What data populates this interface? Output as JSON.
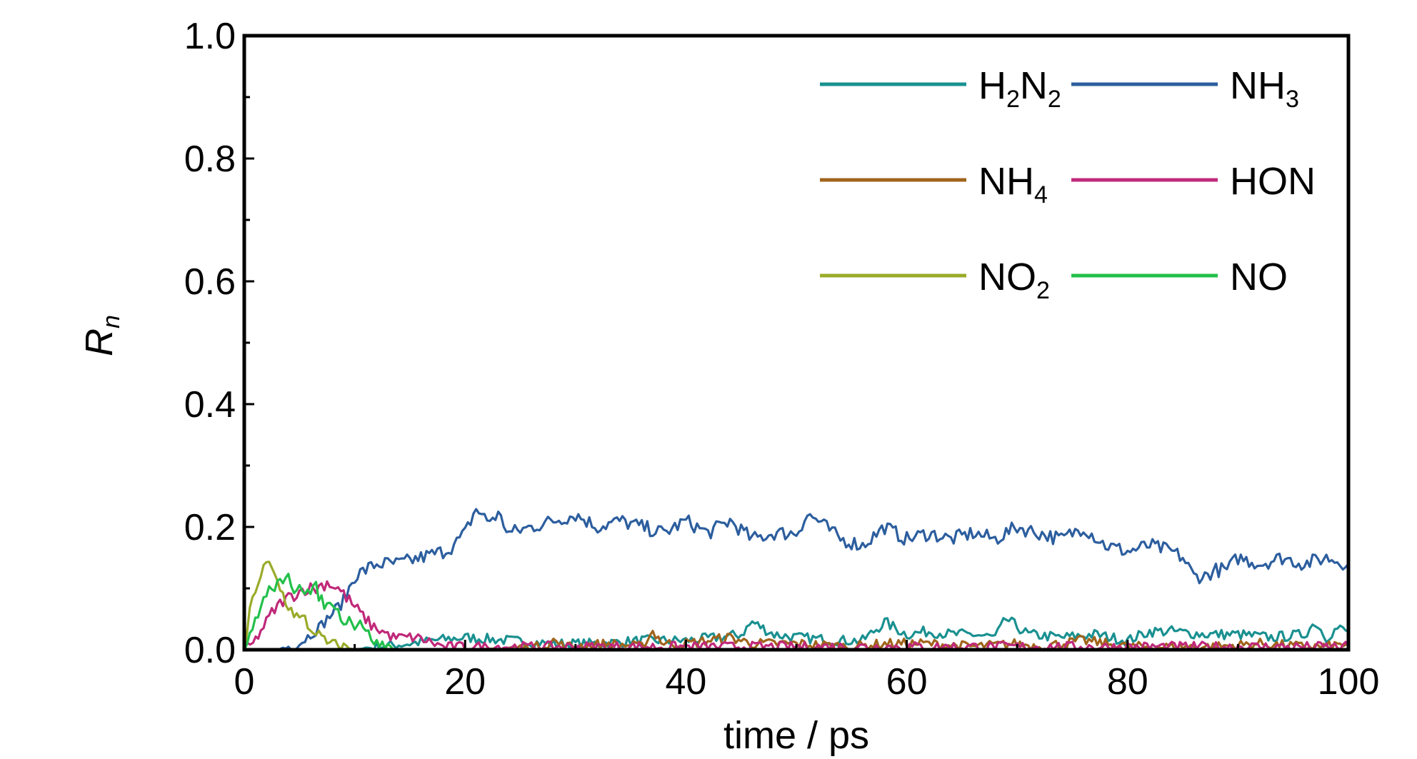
{
  "chart_data": {
    "type": "line",
    "title": "",
    "xlabel": "time / ps",
    "ylabel": {
      "main": "R",
      "sub": "n"
    },
    "xlim": [
      0,
      100
    ],
    "ylim": [
      0,
      1.0
    ],
    "xticks": [
      0,
      20,
      40,
      60,
      80,
      100
    ],
    "xtick_labels": [
      "0",
      "20",
      "40",
      "60",
      "80",
      "100"
    ],
    "yticks": [
      0.0,
      0.2,
      0.4,
      0.6,
      0.8,
      1.0
    ],
    "ytick_labels": [
      "0.0",
      "0.2",
      "0.4",
      "0.6",
      "0.8",
      "1.0"
    ],
    "grid": false,
    "legend_position": "top-right",
    "series": [
      {
        "name": "H2N2",
        "legend": {
          "parts": [
            "H",
            "2",
            "N",
            "2"
          ]
        },
        "color": "#1a9090",
        "x": [
          0,
          10,
          12,
          15,
          17,
          20,
          24,
          28,
          32,
          36,
          40,
          43,
          45,
          46,
          48,
          50,
          54,
          56,
          58,
          60,
          62,
          64,
          66,
          68,
          69,
          71,
          74,
          77,
          80,
          82,
          84,
          87,
          90,
          93,
          96,
          97,
          98,
          99,
          100
        ],
        "y": [
          0.0,
          0.0,
          0.005,
          0.01,
          0.015,
          0.02,
          0.015,
          0.01,
          0.01,
          0.015,
          0.015,
          0.02,
          0.025,
          0.045,
          0.025,
          0.02,
          0.015,
          0.015,
          0.045,
          0.025,
          0.03,
          0.025,
          0.025,
          0.02,
          0.05,
          0.025,
          0.02,
          0.025,
          0.015,
          0.03,
          0.03,
          0.025,
          0.025,
          0.02,
          0.025,
          0.045,
          0.02,
          0.035,
          0.03
        ]
      },
      {
        "name": "NH3",
        "legend": {
          "parts": [
            "NH",
            "3"
          ]
        },
        "color": "#2c5e9e",
        "x": [
          0,
          3,
          5,
          7,
          9,
          10,
          11,
          12,
          14,
          16,
          18,
          19,
          20,
          21,
          22,
          23,
          24,
          26,
          28,
          30,
          32,
          34,
          36,
          38,
          40,
          42,
          44,
          46,
          48,
          50,
          51,
          52,
          54,
          56,
          58,
          60,
          62,
          64,
          66,
          68,
          70,
          72,
          74,
          76,
          78,
          80,
          82,
          84,
          85,
          86,
          87,
          88,
          89,
          90,
          92,
          94,
          96,
          98,
          100
        ],
        "y": [
          0.0,
          0.0,
          0.01,
          0.04,
          0.08,
          0.12,
          0.13,
          0.14,
          0.14,
          0.15,
          0.16,
          0.17,
          0.19,
          0.23,
          0.21,
          0.22,
          0.19,
          0.2,
          0.21,
          0.22,
          0.2,
          0.21,
          0.2,
          0.19,
          0.21,
          0.19,
          0.21,
          0.18,
          0.19,
          0.19,
          0.22,
          0.21,
          0.18,
          0.17,
          0.2,
          0.18,
          0.19,
          0.18,
          0.19,
          0.18,
          0.2,
          0.19,
          0.18,
          0.2,
          0.17,
          0.16,
          0.17,
          0.16,
          0.15,
          0.12,
          0.12,
          0.13,
          0.13,
          0.15,
          0.14,
          0.15,
          0.14,
          0.15,
          0.14
        ]
      },
      {
        "name": "NH4",
        "legend": {
          "parts": [
            "NH",
            "4"
          ]
        },
        "color": "#a0641c",
        "x": [
          0,
          20,
          27,
          28,
          29,
          33,
          36,
          37,
          38,
          40,
          42,
          44,
          46,
          50,
          55,
          58,
          62,
          66,
          70,
          72,
          76,
          80,
          84,
          88,
          92,
          96,
          98,
          100
        ],
        "y": [
          0.0,
          0.0,
          0.005,
          0.015,
          0.005,
          0.01,
          0.005,
          0.03,
          0.01,
          0.01,
          0.015,
          0.02,
          0.01,
          0.01,
          0.005,
          0.01,
          0.01,
          0.005,
          0.01,
          0.005,
          0.015,
          0.005,
          0.005,
          0.005,
          0.01,
          0.005,
          0.005,
          0.01
        ]
      },
      {
        "name": "HON",
        "legend": {
          "parts": [
            "HON"
          ]
        },
        "color": "#c0297a",
        "x": [
          0,
          0.8,
          1.5,
          2.5,
          3.5,
          4.5,
          5.5,
          6.5,
          7.5,
          8.5,
          9.5,
          10.5,
          11.5,
          12.5,
          13.5,
          14.5,
          15.5,
          16.5,
          18,
          22,
          30,
          40,
          50,
          60,
          70,
          80,
          90,
          95,
          100
        ],
        "y": [
          0.0,
          0.01,
          0.03,
          0.06,
          0.08,
          0.09,
          0.1,
          0.1,
          0.11,
          0.1,
          0.08,
          0.06,
          0.04,
          0.03,
          0.02,
          0.02,
          0.02,
          0.015,
          0.005,
          0.005,
          0.005,
          0.005,
          0.005,
          0.005,
          0.005,
          0.005,
          0.005,
          0.005,
          0.005
        ]
      },
      {
        "name": "NO2",
        "legend": {
          "parts": [
            "NO",
            "2"
          ]
        },
        "color": "#9aab2a",
        "x": [
          0,
          0.5,
          1,
          1.5,
          2,
          2.5,
          3,
          3.5,
          4,
          4.5,
          5,
          5.5,
          6,
          6.5,
          7,
          7.5,
          8,
          9,
          10,
          12,
          20,
          100
        ],
        "y": [
          0.0,
          0.06,
          0.1,
          0.12,
          0.14,
          0.13,
          0.11,
          0.09,
          0.07,
          0.06,
          0.05,
          0.05,
          0.03,
          0.03,
          0.02,
          0.01,
          0.01,
          0.005,
          0.0,
          0.0,
          0.0,
          0.0
        ]
      },
      {
        "name": "NO",
        "legend": {
          "parts": [
            "NO"
          ]
        },
        "color": "#22c04a",
        "x": [
          0,
          0.5,
          1,
          1.5,
          2,
          2.5,
          3,
          3.5,
          4,
          4.5,
          5,
          5.5,
          6,
          6.5,
          7,
          7.5,
          8,
          8.5,
          9,
          9.5,
          10,
          10.5,
          11,
          11.5,
          12,
          13,
          14,
          16,
          20,
          100
        ],
        "y": [
          0.0,
          0.02,
          0.05,
          0.07,
          0.09,
          0.1,
          0.11,
          0.1,
          0.12,
          0.1,
          0.11,
          0.1,
          0.09,
          0.1,
          0.08,
          0.07,
          0.08,
          0.06,
          0.05,
          0.05,
          0.04,
          0.05,
          0.03,
          0.02,
          0.01,
          0.005,
          0.0,
          0.0,
          0.0,
          0.0
        ]
      }
    ]
  }
}
